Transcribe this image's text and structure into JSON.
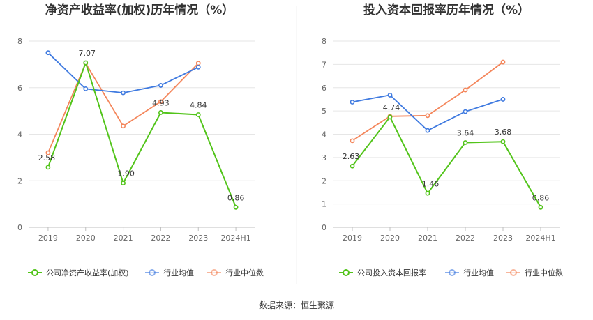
{
  "source": "数据来源：恒生聚源",
  "colors": {
    "company": "#52c41a",
    "industry_avg": "#3f7ae0",
    "industry_median": "#f4865b",
    "grid": "#e6e6e6",
    "axis": "#bfbfbf"
  },
  "chart_data": [
    {
      "type": "line",
      "title": "净资产收益率(加权)历年情况（%）",
      "categories": [
        "2019",
        "2020",
        "2021",
        "2022",
        "2023",
        "2024H1"
      ],
      "ylim": [
        0,
        8
      ],
      "yticks": [
        0,
        2,
        4,
        6,
        8
      ],
      "grid": true,
      "legend_position": "bottom",
      "series": [
        {
          "name": "公司净资产收益率(加权)",
          "key": "company",
          "values": [
            2.58,
            7.07,
            1.9,
            4.93,
            4.84,
            0.86
          ],
          "labels": [
            "2.58",
            "7.07",
            "1.90",
            "4.93",
            "4.84",
            "0.86"
          ]
        },
        {
          "name": "行业均值",
          "key": "industry_avg",
          "values": [
            7.5,
            5.95,
            5.78,
            6.1,
            6.88,
            null
          ]
        },
        {
          "name": "行业中位数",
          "key": "industry_median",
          "values": [
            3.2,
            7.05,
            4.35,
            5.4,
            7.05,
            null
          ]
        }
      ]
    },
    {
      "type": "line",
      "title": "投入资本回报率历年情况（%）",
      "categories": [
        "2019",
        "2020",
        "2021",
        "2022",
        "2023",
        "2024H1"
      ],
      "ylim": [
        0,
        8
      ],
      "yticks": [
        0,
        1,
        2,
        3,
        4,
        5,
        6,
        7,
        8
      ],
      "grid": true,
      "legend_position": "bottom",
      "series": [
        {
          "name": "公司投入资本回报率",
          "key": "company",
          "values": [
            2.63,
            4.74,
            1.46,
            3.64,
            3.68,
            0.86
          ],
          "labels": [
            "2.63",
            "4.74",
            "1.46",
            "3.64",
            "3.68",
            "0.86"
          ]
        },
        {
          "name": "行业均值",
          "key": "industry_avg",
          "values": [
            5.38,
            5.68,
            4.16,
            4.97,
            5.5,
            null
          ]
        },
        {
          "name": "行业中位数",
          "key": "industry_median",
          "values": [
            3.72,
            4.77,
            4.8,
            5.9,
            7.1,
            null
          ]
        }
      ]
    }
  ]
}
